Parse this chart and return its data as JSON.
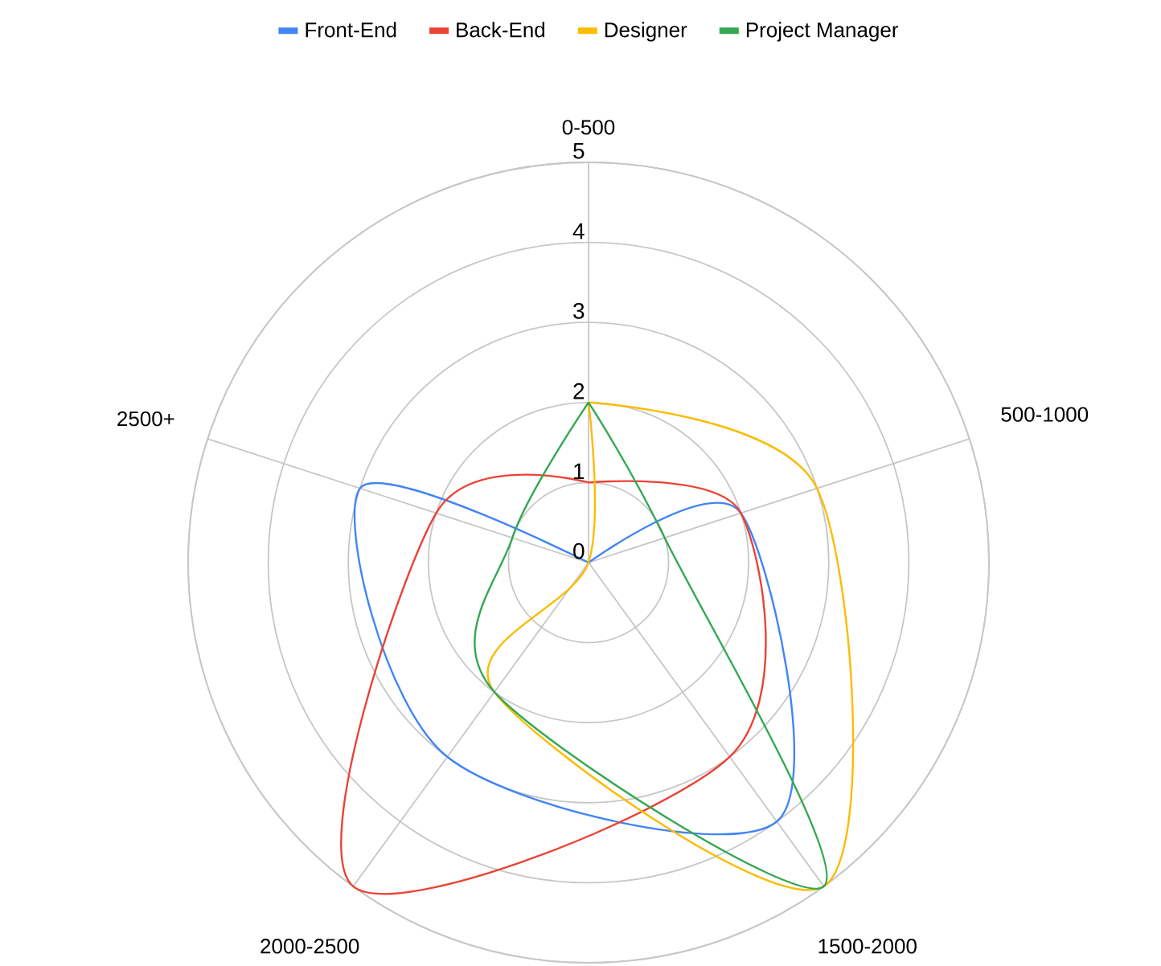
{
  "chart_data": {
    "type": "radar",
    "categories": [
      "0-500",
      "500-1000",
      "1500-2000",
      "2000-2500",
      "2500+"
    ],
    "series": [
      {
        "name": "Front-End",
        "color": "#4285f4",
        "values": [
          0,
          2,
          4,
          3,
          3
        ]
      },
      {
        "name": "Back-End",
        "color": "#ea4335",
        "values": [
          1,
          2,
          3,
          5,
          2
        ]
      },
      {
        "name": "Designer",
        "color": "#fbbc04",
        "values": [
          2,
          3,
          5,
          2,
          0
        ]
      },
      {
        "name": "Project Manager",
        "color": "#34a853",
        "values": [
          2,
          1,
          5,
          2,
          1
        ]
      }
    ],
    "ylim": [
      0,
      5
    ],
    "yticks": [
      0,
      1,
      2,
      3,
      4,
      5
    ],
    "grid": true,
    "legend": "top"
  }
}
